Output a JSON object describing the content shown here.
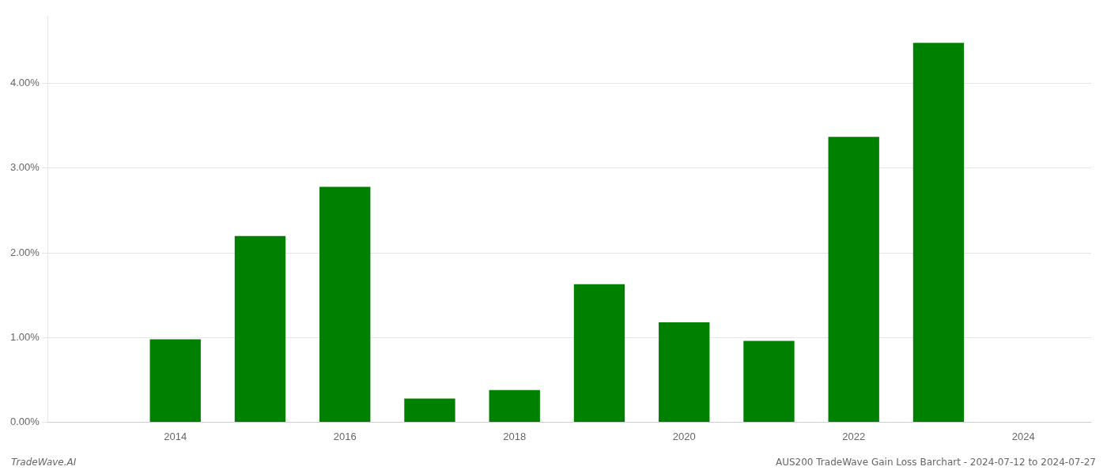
{
  "chart_data": {
    "type": "bar",
    "x": [
      2014,
      2015,
      2016,
      2017,
      2018,
      2019,
      2020,
      2021,
      2022,
      2023
    ],
    "values": [
      0.0098,
      0.022,
      0.0278,
      0.0028,
      0.0038,
      0.0163,
      0.0118,
      0.0096,
      0.0337,
      0.0448
    ],
    "color": "#008000",
    "xlim": [
      2012.5,
      2024.8
    ],
    "xticks": [
      2014,
      2016,
      2018,
      2020,
      2022,
      2024
    ],
    "ylim": [
      0,
      0.048
    ],
    "yticks": [
      {
        "value": 0.0,
        "label": "0.00%"
      },
      {
        "value": 0.01,
        "label": "1.00%"
      },
      {
        "value": 0.02,
        "label": "2.00%"
      },
      {
        "value": 0.03,
        "label": "3.00%"
      },
      {
        "value": 0.04,
        "label": "4.00%"
      }
    ],
    "grid": "y",
    "annotations": [
      "TradeWave.AI",
      "AUS200 TradeWave Gain Loss Barchart - 2024-07-12 to 2024-07-27"
    ]
  }
}
